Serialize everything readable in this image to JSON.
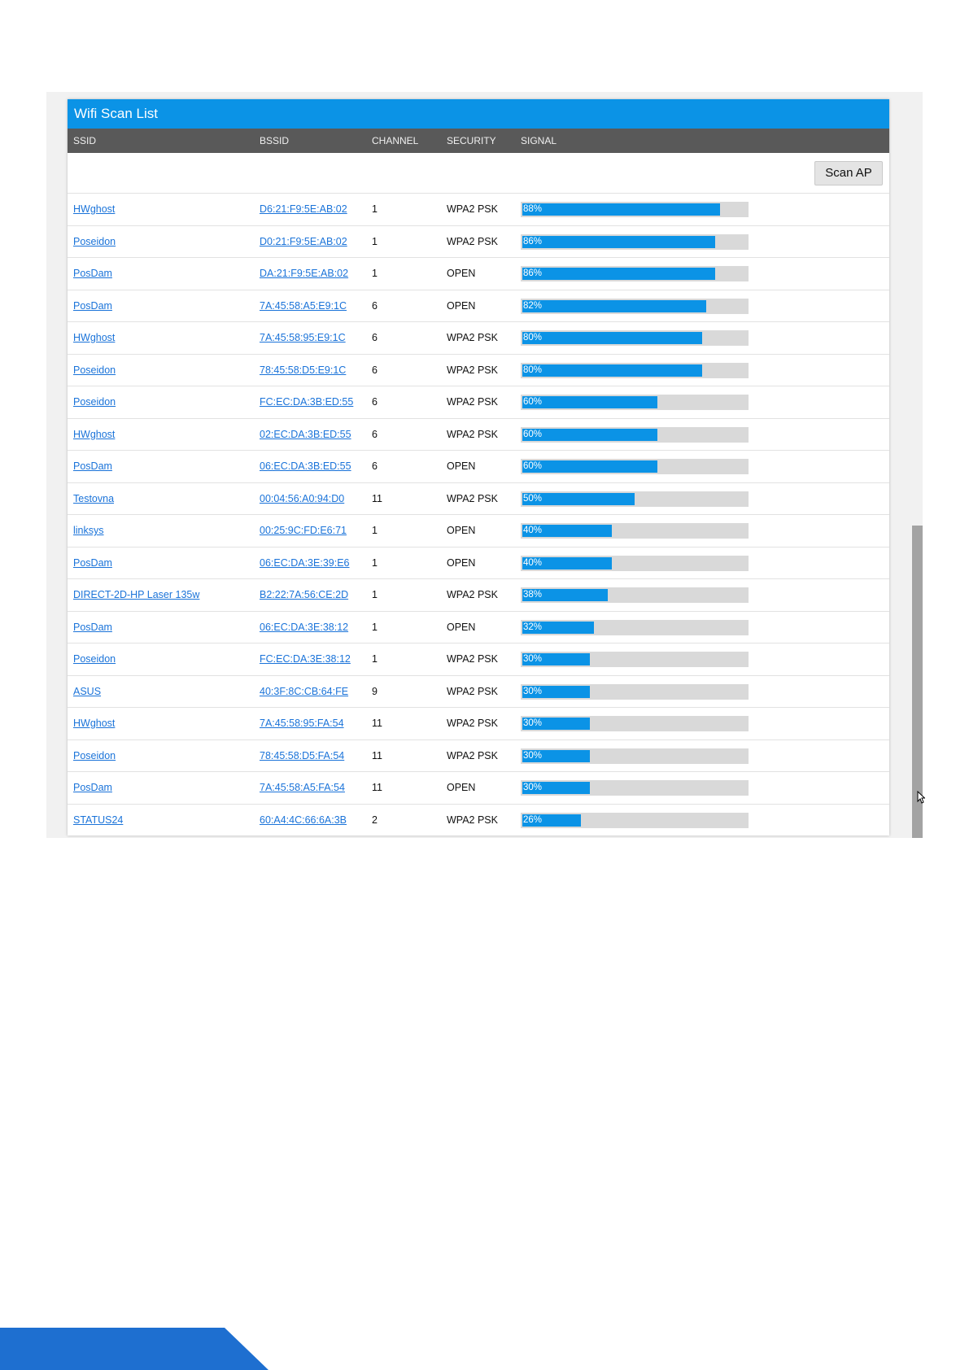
{
  "panel": {
    "title": "Wifi Scan List",
    "columns": {
      "ssid": "SSID",
      "bssid": "BSSID",
      "channel": "CHANNEL",
      "security": "SECURITY",
      "signal": "SIGNAL"
    },
    "scan_button": "Scan AP"
  },
  "colors": {
    "accent": "#0b93e6",
    "header_bar": "#595959",
    "link": "#1a73d9",
    "signal_track": "#d9d9d9",
    "footer_band": "#1e6fd0"
  },
  "networks": [
    {
      "ssid": "HWghost",
      "bssid": "D6:21:F9:5E:AB:02",
      "channel": "1",
      "security": "WPA2 PSK",
      "signal": 88,
      "signal_label": "88%"
    },
    {
      "ssid": "Poseidon",
      "bssid": "D0:21:F9:5E:AB:02",
      "channel": "1",
      "security": "WPA2 PSK",
      "signal": 86,
      "signal_label": "86%"
    },
    {
      "ssid": "PosDam",
      "bssid": "DA:21:F9:5E:AB:02",
      "channel": "1",
      "security": "OPEN",
      "signal": 86,
      "signal_label": "86%"
    },
    {
      "ssid": "PosDam",
      "bssid": "7A:45:58:A5:E9:1C",
      "channel": "6",
      "security": "OPEN",
      "signal": 82,
      "signal_label": "82%"
    },
    {
      "ssid": "HWghost",
      "bssid": "7A:45:58:95:E9:1C",
      "channel": "6",
      "security": "WPA2 PSK",
      "signal": 80,
      "signal_label": "80%"
    },
    {
      "ssid": "Poseidon",
      "bssid": "78:45:58:D5:E9:1C",
      "channel": "6",
      "security": "WPA2 PSK",
      "signal": 80,
      "signal_label": "80%"
    },
    {
      "ssid": "Poseidon",
      "bssid": "FC:EC:DA:3B:ED:55",
      "channel": "6",
      "security": "WPA2 PSK",
      "signal": 60,
      "signal_label": "60%"
    },
    {
      "ssid": "HWghost",
      "bssid": "02:EC:DA:3B:ED:55",
      "channel": "6",
      "security": "WPA2 PSK",
      "signal": 60,
      "signal_label": "60%"
    },
    {
      "ssid": "PosDam",
      "bssid": "06:EC:DA:3B:ED:55",
      "channel": "6",
      "security": "OPEN",
      "signal": 60,
      "signal_label": "60%"
    },
    {
      "ssid": "Testovna",
      "bssid": "00:04:56:A0:94:D0",
      "channel": "11",
      "security": "WPA2 PSK",
      "signal": 50,
      "signal_label": "50%"
    },
    {
      "ssid": "linksys",
      "bssid": "00:25:9C:FD:E6:71",
      "channel": "1",
      "security": "OPEN",
      "signal": 40,
      "signal_label": "40%"
    },
    {
      "ssid": "PosDam",
      "bssid": "06:EC:DA:3E:39:E6",
      "channel": "1",
      "security": "OPEN",
      "signal": 40,
      "signal_label": "40%"
    },
    {
      "ssid": "DIRECT-2D-HP Laser 135w",
      "bssid": "B2:22:7A:56:CE:2D",
      "channel": "1",
      "security": "WPA2 PSK",
      "signal": 38,
      "signal_label": "38%"
    },
    {
      "ssid": "PosDam",
      "bssid": "06:EC:DA:3E:38:12",
      "channel": "1",
      "security": "OPEN",
      "signal": 32,
      "signal_label": "32%"
    },
    {
      "ssid": "Poseidon",
      "bssid": "FC:EC:DA:3E:38:12",
      "channel": "1",
      "security": "WPA2 PSK",
      "signal": 30,
      "signal_label": "30%"
    },
    {
      "ssid": "ASUS",
      "bssid": "40:3F:8C:CB:64:FE",
      "channel": "9",
      "security": "WPA2 PSK",
      "signal": 30,
      "signal_label": "30%"
    },
    {
      "ssid": "HWghost",
      "bssid": "7A:45:58:95:FA:54",
      "channel": "11",
      "security": "WPA2 PSK",
      "signal": 30,
      "signal_label": "30%"
    },
    {
      "ssid": "Poseidon",
      "bssid": "78:45:58:D5:FA:54",
      "channel": "11",
      "security": "WPA2 PSK",
      "signal": 30,
      "signal_label": "30%"
    },
    {
      "ssid": "PosDam",
      "bssid": "7A:45:58:A5:FA:54",
      "channel": "11",
      "security": "OPEN",
      "signal": 30,
      "signal_label": "30%"
    },
    {
      "ssid": "STATUS24",
      "bssid": "60:A4:4C:66:6A:3B",
      "channel": "2",
      "security": "WPA2 PSK",
      "signal": 26,
      "signal_label": "26%"
    }
  ]
}
